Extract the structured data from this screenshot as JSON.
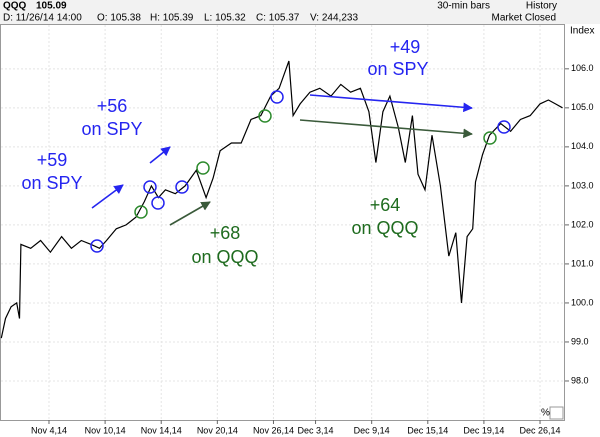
{
  "header": {
    "symbol": "QQQ",
    "last": "105.09",
    "interval": "30-min bars",
    "history": "History",
    "fields": [
      "D: 11/26/14 14:00",
      "O: 105.38",
      "H: 105.39",
      "L: 105.32",
      "C: 105.37",
      "V: 244,233"
    ],
    "status": "Market Closed",
    "axis_title": "Index",
    "percent": "%"
  },
  "chart_data": {
    "type": "line",
    "series": [
      {
        "name": "QQQ",
        "color": "#000000",
        "x": [
          -1.4,
          -1.1,
          -0.7,
          -0.3,
          -0.1,
          0.0,
          0.7,
          1.4,
          2.1,
          2.9,
          3.6,
          4.3,
          5.0,
          5.6,
          6.1,
          6.8,
          7.5,
          8.2,
          8.8,
          9.3,
          9.8,
          10.3,
          11.0,
          11.7,
          12.5,
          13.2,
          13.7,
          14.2,
          15.0,
          15.7,
          16.4,
          17.1,
          17.8,
          18.4,
          18.9,
          19.1,
          19.4,
          19.9,
          20.6,
          21.3,
          22.1,
          22.8,
          23.5,
          24.2,
          24.8,
          25.3,
          25.8,
          26.3,
          26.9,
          27.4,
          27.9,
          28.3,
          28.8,
          29.3,
          29.9,
          30.5,
          31.0,
          31.4,
          31.8,
          32.2,
          32.4,
          32.9,
          33.4,
          34.2,
          34.9,
          35.6,
          36.3,
          37.0,
          37.6,
          38.1,
          38.6
        ],
        "values": [
          99.1,
          99.6,
          99.9,
          100.0,
          99.6,
          101.5,
          101.4,
          101.6,
          101.3,
          101.7,
          101.4,
          101.6,
          101.5,
          101.4,
          101.6,
          101.9,
          102.0,
          102.2,
          102.6,
          103.0,
          102.7,
          102.9,
          102.8,
          103.0,
          103.4,
          102.7,
          103.2,
          103.9,
          104.1,
          104.1,
          104.7,
          104.8,
          105.3,
          105.5,
          106.0,
          106.2,
          104.8,
          105.1,
          105.4,
          105.5,
          105.3,
          105.6,
          105.4,
          105.5,
          104.9,
          103.6,
          104.9,
          105.3,
          104.5,
          103.6,
          104.8,
          103.3,
          102.9,
          104.3,
          103.0,
          101.2,
          101.8,
          100.0,
          101.7,
          101.9,
          103.1,
          103.8,
          104.3,
          104.6,
          104.4,
          104.7,
          104.8,
          105.1,
          105.2,
          105.1,
          105.0
        ]
      }
    ],
    "xlim": [
      -1.42,
      38.78
    ],
    "xticks": [
      {
        "value": 2,
        "label": "Nov 4,14"
      },
      {
        "value": 6,
        "label": "Nov 10,14"
      },
      {
        "value": 10,
        "label": "Nov 14,14"
      },
      {
        "value": 14,
        "label": "Nov 20,14"
      },
      {
        "value": 18,
        "label": "Nov 26,14"
      },
      {
        "value": 21,
        "label": "Dec 3,14"
      },
      {
        "value": 25,
        "label": "Dec 9,14"
      },
      {
        "value": 29,
        "label": "Dec 15,14"
      },
      {
        "value": 33,
        "label": "Dec 19,14"
      },
      {
        "value": 37,
        "label": "Dec 26,14"
      }
    ],
    "ylim": [
      97.0,
      107.2
    ],
    "yticks": [
      {
        "value": 98,
        "label": "98.0"
      },
      {
        "value": 99,
        "label": "99.0"
      },
      {
        "value": 100,
        "label": "100.0"
      },
      {
        "value": 101,
        "label": "101.0"
      },
      {
        "value": 102,
        "label": "102.0"
      },
      {
        "value": 103,
        "label": "103.0"
      },
      {
        "value": 104,
        "label": "104.0"
      },
      {
        "value": 105,
        "label": "105.0"
      },
      {
        "value": 106,
        "label": "106.0"
      }
    ],
    "grid": true,
    "annotations": [
      {
        "lines": [
          "+59",
          "on SPY"
        ]
      },
      {
        "lines": [
          "+56",
          "on SPY"
        ]
      },
      {
        "lines": [
          "+68",
          "on QQQ"
        ]
      },
      {
        "lines": [
          "+64",
          "on QQQ"
        ]
      },
      {
        "lines": [
          "+49",
          "on SPY"
        ]
      }
    ]
  }
}
